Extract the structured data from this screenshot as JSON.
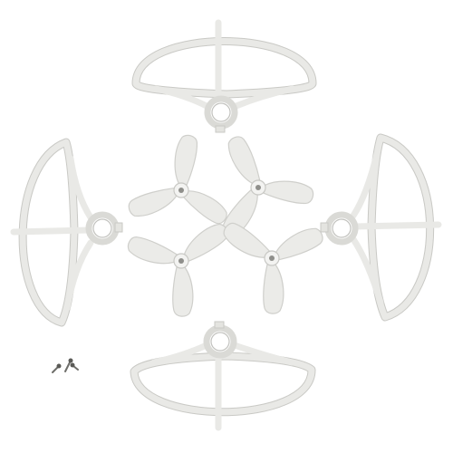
{
  "image": {
    "subject": "propeller-guard-and-propeller-set",
    "colors": {
      "background": "#ffffff",
      "plastic": "#ebebe8",
      "plastic_shadow": "#cfcfcb",
      "screws": "#5a5a56"
    },
    "parts": {
      "prop_guards": 4,
      "propellers": 4,
      "blades_per_propeller": 3,
      "screws": 3
    }
  }
}
